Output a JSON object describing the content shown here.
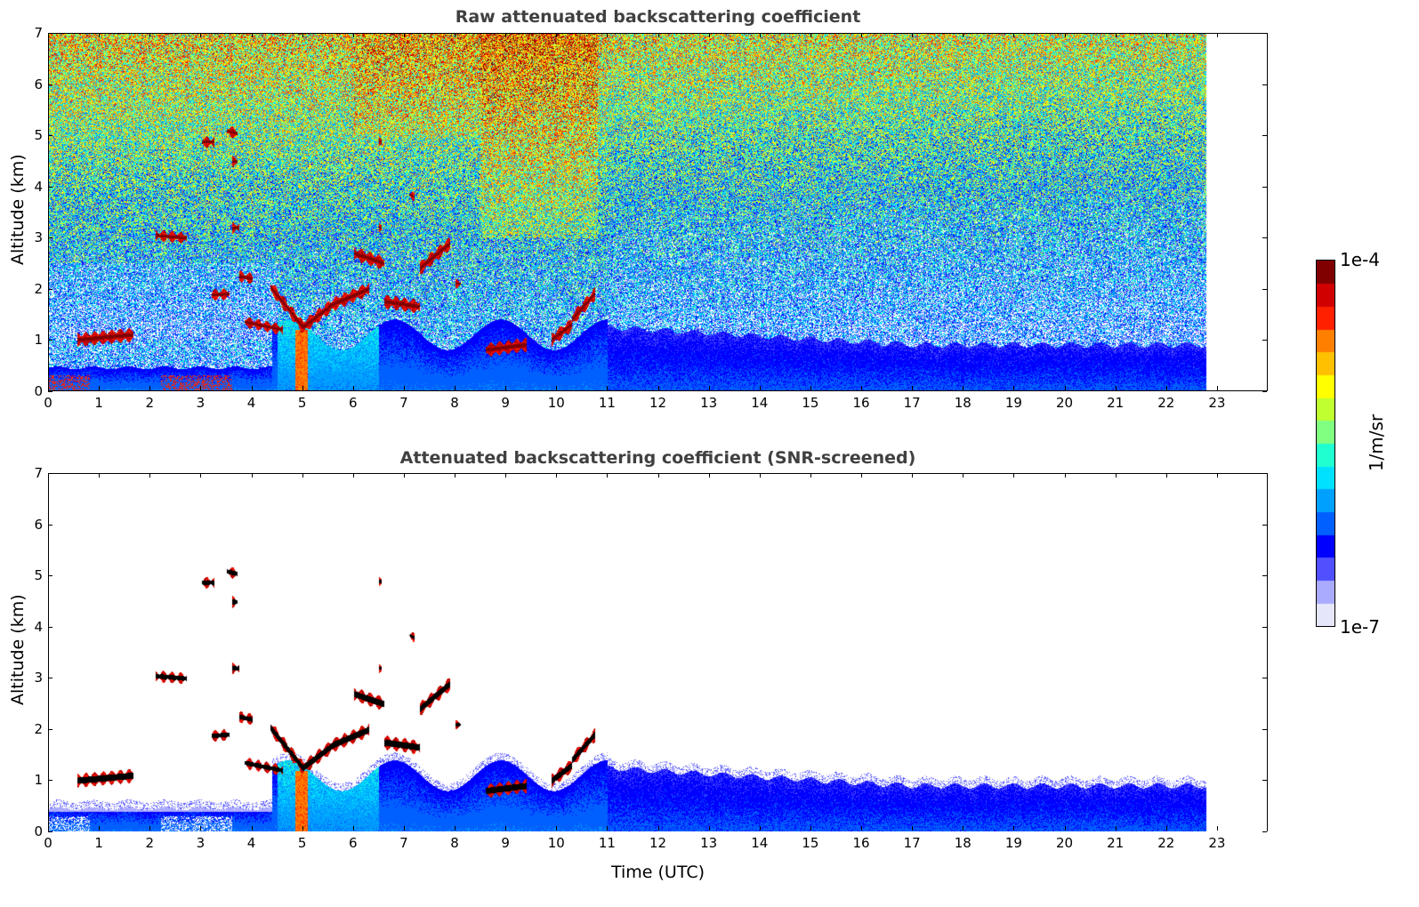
{
  "chart_data": [
    {
      "type": "heatmap",
      "id": "raw",
      "title": "Raw attenuated backscattering coefficient",
      "xlabel": "",
      "ylabel": "Altitude (km)",
      "xlim": [
        0,
        24
      ],
      "ylim": [
        0,
        7
      ],
      "xticks": [
        0,
        1,
        2,
        3,
        4,
        5,
        6,
        7,
        8,
        9,
        10,
        11,
        12,
        13,
        14,
        15,
        16,
        17,
        18,
        19,
        20,
        21,
        22,
        23
      ],
      "yticks": [
        0,
        1,
        2,
        3,
        4,
        5,
        6,
        7
      ],
      "data_end_time": 22.8,
      "screened": false
    },
    {
      "type": "heatmap",
      "id": "snr",
      "title": "Attenuated backscattering coefficient (SNR-screened)",
      "xlabel": "Time (UTC)",
      "ylabel": "Altitude (km)",
      "xlim": [
        0,
        24
      ],
      "ylim": [
        0,
        7
      ],
      "xticks": [
        0,
        1,
        2,
        3,
        4,
        5,
        6,
        7,
        8,
        9,
        10,
        11,
        12,
        13,
        14,
        15,
        16,
        17,
        18,
        19,
        20,
        21,
        22,
        23
      ],
      "yticks": [
        0,
        1,
        2,
        3,
        4,
        5,
        6,
        7
      ],
      "data_end_time": 22.8,
      "screened": true
    }
  ],
  "cloud_layers_time_alt_km": [
    [
      0.55,
      1.0,
      1.65,
      1.1,
      0.2
    ],
    [
      2.1,
      3.05,
      2.7,
      3.0,
      0.15
    ],
    [
      3.0,
      4.88,
      3.25,
      4.88,
      0.15
    ],
    [
      3.2,
      1.88,
      3.55,
      1.9,
      0.15
    ],
    [
      3.5,
      5.1,
      3.7,
      5.05,
      0.15
    ],
    [
      3.6,
      4.5,
      3.7,
      4.5,
      0.15
    ],
    [
      3.6,
      3.2,
      3.75,
      3.2,
      0.15
    ],
    [
      3.75,
      2.25,
      4.0,
      2.2,
      0.15
    ],
    [
      3.85,
      1.35,
      4.6,
      1.2,
      0.15
    ],
    [
      4.35,
      2.05,
      5.0,
      1.25,
      0.2
    ],
    [
      5.0,
      1.25,
      5.6,
      1.7,
      0.2
    ],
    [
      5.6,
      1.7,
      6.3,
      2.0,
      0.2
    ],
    [
      6.0,
      2.7,
      6.6,
      2.5,
      0.2
    ],
    [
      6.6,
      1.75,
      7.3,
      1.65,
      0.2
    ],
    [
      7.3,
      2.4,
      7.9,
      2.9,
      0.2
    ],
    [
      8.6,
      0.8,
      9.4,
      0.9,
      0.2
    ],
    [
      9.9,
      1.0,
      10.3,
      1.3,
      0.2
    ],
    [
      10.3,
      1.4,
      10.75,
      1.9,
      0.2
    ],
    [
      6.5,
      4.9,
      6.55,
      4.9,
      0.1
    ],
    [
      6.5,
      3.2,
      6.55,
      3.2,
      0.1
    ],
    [
      7.1,
      3.85,
      7.2,
      3.8,
      0.1
    ],
    [
      8.0,
      2.1,
      8.1,
      2.1,
      0.1
    ]
  ],
  "colorbar": {
    "label": "1/m/sr",
    "max_label": "1e-4",
    "min_label": "1e-7",
    "colors": [
      "#e6e6fa",
      "#aaaaff",
      "#5050ff",
      "#0000ff",
      "#0060ff",
      "#00a0ff",
      "#00e0ff",
      "#20ffd0",
      "#80ff80",
      "#c0ff30",
      "#ffff00",
      "#ffc000",
      "#ff8000",
      "#ff2000",
      "#d00000",
      "#800000"
    ]
  }
}
